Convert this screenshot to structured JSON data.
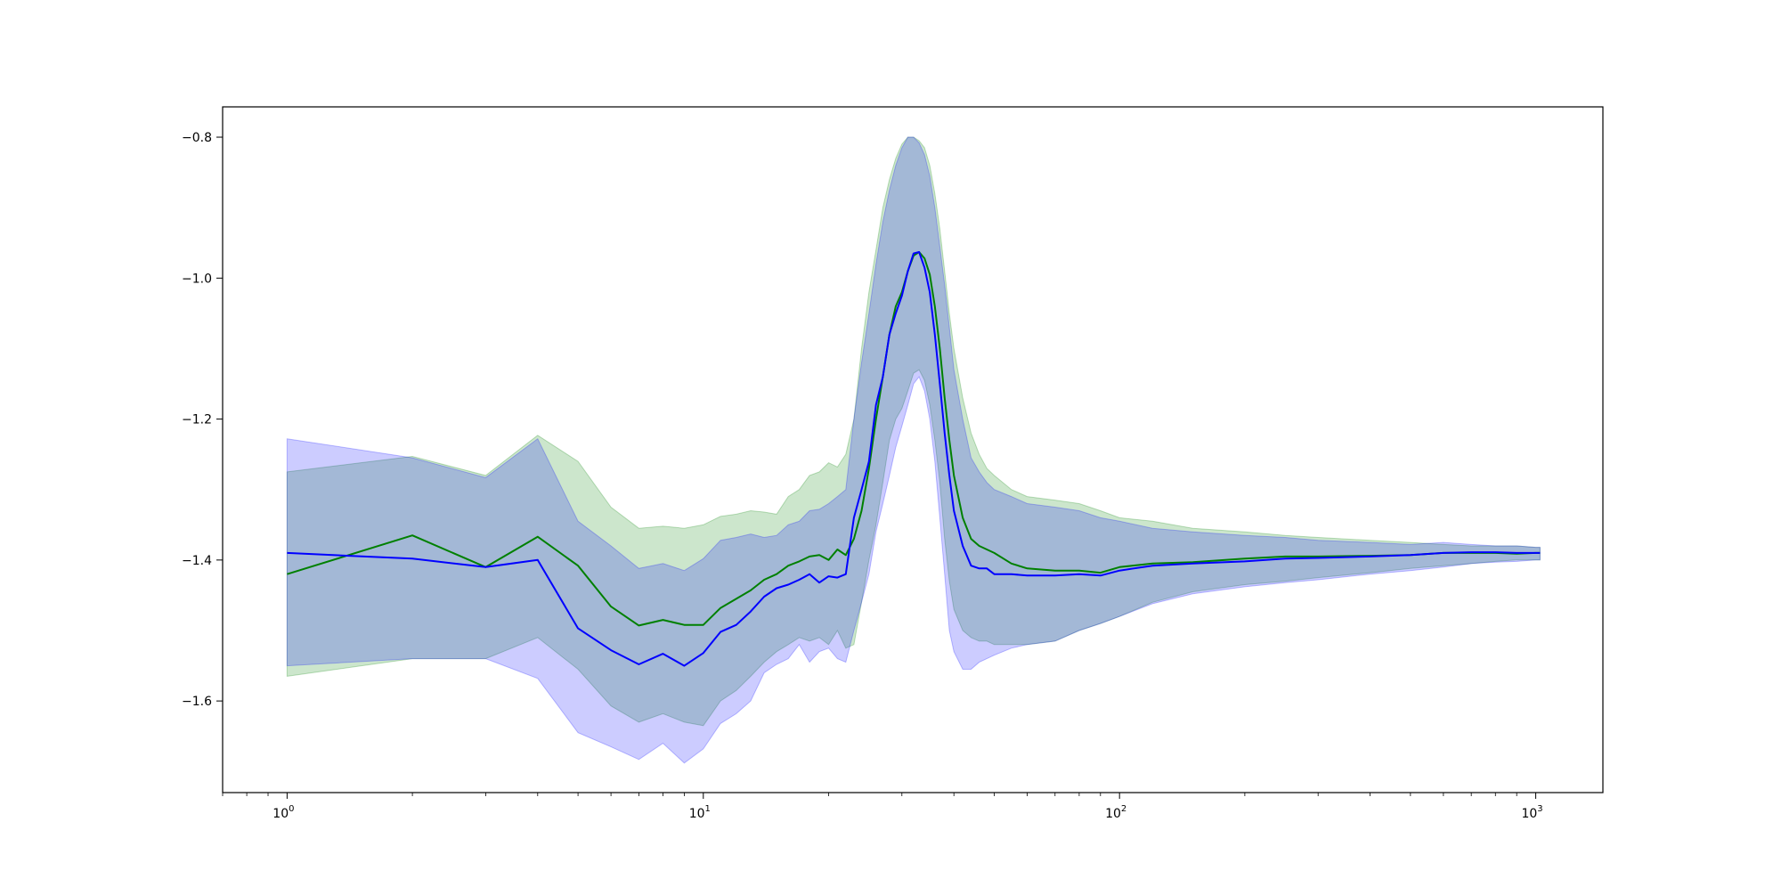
{
  "chart_data": {
    "type": "area",
    "title": "",
    "xlabel": "",
    "ylabel": "",
    "xscale": "log",
    "xlim": [
      0.7,
      1450
    ],
    "ylim": [
      -1.73,
      -0.757
    ],
    "grid": false,
    "legend": "none",
    "x_ticks": [
      {
        "value": 1,
        "base": "10",
        "exp": "0"
      },
      {
        "value": 10,
        "base": "10",
        "exp": "1"
      },
      {
        "value": 100,
        "base": "10",
        "exp": "2"
      },
      {
        "value": 1000,
        "base": "10",
        "exp": "3"
      }
    ],
    "y_ticks": [
      {
        "value": -0.8,
        "label": "−0.8"
      },
      {
        "value": -1.0,
        "label": "−1.0"
      },
      {
        "value": -1.2,
        "label": "−1.2"
      },
      {
        "value": -1.4,
        "label": "−1.4"
      },
      {
        "value": -1.6,
        "label": "−1.6"
      }
    ],
    "series": [
      {
        "color": "#008000",
        "band_color": "#008000",
        "band_opacity": 0.2,
        "x": [
          1,
          2,
          3,
          4,
          5,
          6,
          7,
          8,
          9,
          10,
          11,
          12,
          13,
          14,
          15,
          16,
          17,
          18,
          19,
          20,
          21,
          22,
          23,
          24,
          25,
          26,
          27,
          28,
          29,
          30,
          31,
          32,
          33,
          34,
          35,
          36,
          37,
          38,
          39,
          40,
          42,
          44,
          46,
          48,
          50,
          55,
          60,
          70,
          80,
          90,
          100,
          120,
          150,
          200,
          250,
          300,
          400,
          500,
          600,
          700,
          800,
          900,
          1000,
          1024
        ],
        "mean": [
          -1.42,
          -1.365,
          -1.41,
          -1.367,
          -1.408,
          -1.466,
          -1.493,
          -1.485,
          -1.492,
          -1.492,
          -1.468,
          -1.455,
          -1.443,
          -1.428,
          -1.42,
          -1.408,
          -1.402,
          -1.395,
          -1.393,
          -1.4,
          -1.385,
          -1.393,
          -1.37,
          -1.33,
          -1.27,
          -1.2,
          -1.14,
          -1.08,
          -1.04,
          -1.02,
          -0.99,
          -0.968,
          -0.963,
          -0.972,
          -0.995,
          -1.04,
          -1.1,
          -1.17,
          -1.23,
          -1.28,
          -1.34,
          -1.37,
          -1.38,
          -1.385,
          -1.39,
          -1.405,
          -1.412,
          -1.415,
          -1.415,
          -1.418,
          -1.41,
          -1.405,
          -1.403,
          -1.398,
          -1.395,
          -1.395,
          -1.394,
          -1.393,
          -1.39,
          -1.39,
          -1.39,
          -1.391,
          -1.39,
          -1.39
        ],
        "upper": [
          -1.275,
          -1.253,
          -1.28,
          -1.223,
          -1.26,
          -1.325,
          -1.355,
          -1.352,
          -1.355,
          -1.35,
          -1.338,
          -1.335,
          -1.33,
          -1.332,
          -1.335,
          -1.31,
          -1.3,
          -1.28,
          -1.275,
          -1.262,
          -1.268,
          -1.25,
          -1.2,
          -1.1,
          -1.02,
          -0.96,
          -0.9,
          -0.86,
          -0.83,
          -0.81,
          -0.8,
          -0.8,
          -0.805,
          -0.815,
          -0.84,
          -0.88,
          -0.93,
          -0.99,
          -1.05,
          -1.1,
          -1.17,
          -1.22,
          -1.25,
          -1.27,
          -1.28,
          -1.3,
          -1.31,
          -1.315,
          -1.32,
          -1.33,
          -1.34,
          -1.345,
          -1.355,
          -1.36,
          -1.365,
          -1.368,
          -1.372,
          -1.375,
          -1.378,
          -1.38,
          -1.38,
          -1.38,
          -1.382,
          -1.382
        ],
        "lower": [
          -1.565,
          -1.54,
          -1.54,
          -1.51,
          -1.555,
          -1.607,
          -1.63,
          -1.618,
          -1.63,
          -1.635,
          -1.6,
          -1.585,
          -1.565,
          -1.545,
          -1.53,
          -1.52,
          -1.51,
          -1.515,
          -1.51,
          -1.52,
          -1.5,
          -1.525,
          -1.52,
          -1.46,
          -1.4,
          -1.35,
          -1.29,
          -1.23,
          -1.2,
          -1.185,
          -1.16,
          -1.135,
          -1.13,
          -1.145,
          -1.18,
          -1.23,
          -1.29,
          -1.37,
          -1.43,
          -1.47,
          -1.5,
          -1.51,
          -1.515,
          -1.515,
          -1.52,
          -1.52,
          -1.52,
          -1.515,
          -1.5,
          -1.49,
          -1.48,
          -1.46,
          -1.445,
          -1.435,
          -1.43,
          -1.425,
          -1.418,
          -1.412,
          -1.408,
          -1.405,
          -1.402,
          -1.4,
          -1.4,
          -1.4
        ]
      },
      {
        "color": "#0000ff",
        "band_color": "#0000ff",
        "band_opacity": 0.2,
        "x": [
          1,
          2,
          3,
          4,
          5,
          6,
          7,
          8,
          9,
          10,
          11,
          12,
          13,
          14,
          15,
          16,
          17,
          18,
          19,
          20,
          21,
          22,
          23,
          24,
          25,
          26,
          27,
          28,
          29,
          30,
          31,
          32,
          33,
          34,
          35,
          36,
          37,
          38,
          39,
          40,
          42,
          44,
          46,
          48,
          50,
          55,
          60,
          70,
          80,
          90,
          100,
          120,
          150,
          200,
          250,
          300,
          400,
          500,
          600,
          700,
          800,
          900,
          1000,
          1024
        ],
        "mean": [
          -1.39,
          -1.398,
          -1.41,
          -1.4,
          -1.497,
          -1.528,
          -1.548,
          -1.533,
          -1.55,
          -1.532,
          -1.502,
          -1.492,
          -1.473,
          -1.452,
          -1.44,
          -1.435,
          -1.428,
          -1.42,
          -1.432,
          -1.423,
          -1.425,
          -1.42,
          -1.34,
          -1.3,
          -1.26,
          -1.18,
          -1.14,
          -1.08,
          -1.05,
          -1.025,
          -0.99,
          -0.965,
          -0.963,
          -0.985,
          -1.02,
          -1.08,
          -1.15,
          -1.22,
          -1.28,
          -1.33,
          -1.38,
          -1.408,
          -1.412,
          -1.412,
          -1.42,
          -1.42,
          -1.422,
          -1.422,
          -1.42,
          -1.422,
          -1.415,
          -1.408,
          -1.405,
          -1.402,
          -1.398,
          -1.397,
          -1.395,
          -1.393,
          -1.39,
          -1.389,
          -1.389,
          -1.39,
          -1.39,
          -1.39
        ],
        "upper": [
          -1.228,
          -1.255,
          -1.283,
          -1.228,
          -1.345,
          -1.38,
          -1.412,
          -1.405,
          -1.415,
          -1.398,
          -1.372,
          -1.368,
          -1.363,
          -1.368,
          -1.365,
          -1.35,
          -1.345,
          -1.33,
          -1.328,
          -1.32,
          -1.31,
          -1.3,
          -1.2,
          -1.12,
          -1.05,
          -0.98,
          -0.92,
          -0.875,
          -0.84,
          -0.815,
          -0.8,
          -0.8,
          -0.808,
          -0.825,
          -0.855,
          -0.9,
          -0.955,
          -1.01,
          -1.07,
          -1.13,
          -1.2,
          -1.255,
          -1.275,
          -1.29,
          -1.3,
          -1.31,
          -1.32,
          -1.325,
          -1.33,
          -1.34,
          -1.345,
          -1.355,
          -1.36,
          -1.365,
          -1.368,
          -1.372,
          -1.375,
          -1.378,
          -1.375,
          -1.378,
          -1.38,
          -1.38,
          -1.382,
          -1.382
        ],
        "lower": [
          -1.55,
          -1.54,
          -1.54,
          -1.568,
          -1.645,
          -1.665,
          -1.683,
          -1.66,
          -1.688,
          -1.668,
          -1.632,
          -1.618,
          -1.6,
          -1.56,
          -1.548,
          -1.54,
          -1.52,
          -1.545,
          -1.53,
          -1.525,
          -1.54,
          -1.545,
          -1.5,
          -1.46,
          -1.42,
          -1.36,
          -1.32,
          -1.28,
          -1.24,
          -1.21,
          -1.18,
          -1.15,
          -1.14,
          -1.16,
          -1.2,
          -1.26,
          -1.34,
          -1.42,
          -1.5,
          -1.53,
          -1.555,
          -1.555,
          -1.545,
          -1.54,
          -1.535,
          -1.525,
          -1.52,
          -1.515,
          -1.5,
          -1.49,
          -1.48,
          -1.462,
          -1.448,
          -1.438,
          -1.432,
          -1.428,
          -1.42,
          -1.415,
          -1.41,
          -1.405,
          -1.403,
          -1.402,
          -1.4,
          -1.4
        ]
      }
    ]
  }
}
